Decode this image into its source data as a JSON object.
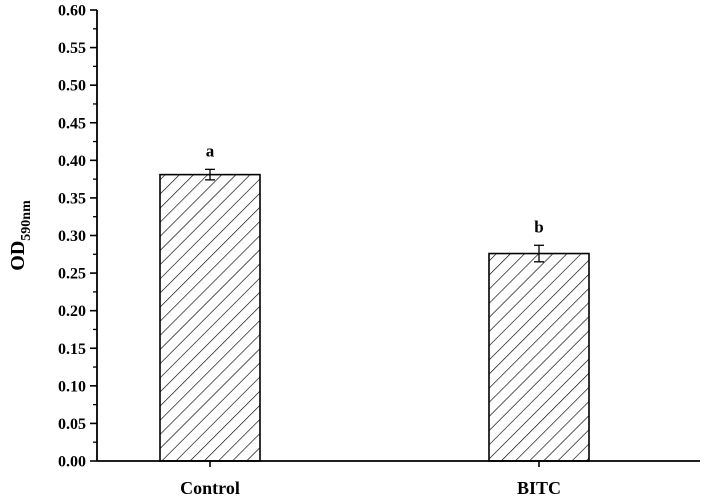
{
  "chart_data": {
    "type": "bar",
    "categories": [
      "Control",
      "BITC"
    ],
    "values": [
      0.381,
      0.276
    ],
    "errors": [
      0.007,
      0.011
    ],
    "significance_labels": [
      "a",
      "b"
    ],
    "title": "",
    "xlabel": "",
    "ylabel": "OD",
    "ylabel_subscript": "590nm",
    "ylim": [
      0,
      0.6
    ],
    "ytick_step": 0.05,
    "yticks": [
      "0.00",
      "0.05",
      "0.10",
      "0.15",
      "0.20",
      "0.25",
      "0.30",
      "0.35",
      "0.40",
      "0.45",
      "0.50",
      "0.55",
      "0.60"
    ],
    "grid": false,
    "legend": "none",
    "bar_fill": "hatched-diagonal",
    "colors": {
      "bar_stroke": "#000000",
      "hatch": "#000000",
      "background": "#ffffff"
    }
  }
}
